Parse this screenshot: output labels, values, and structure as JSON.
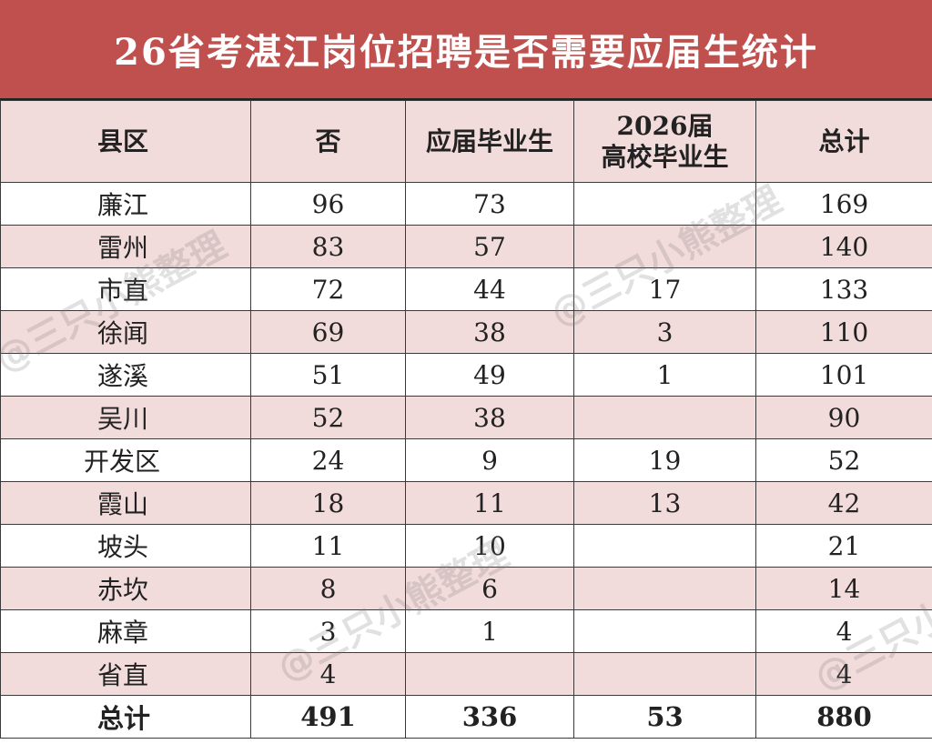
{
  "title": "26省考湛江岗位招聘是否需要应届生统计",
  "watermark": "@三只小熊整理",
  "header": {
    "county": "县区",
    "no": "否",
    "fresh_grad": "应届毕业生",
    "grad_2026_line1": "2026届",
    "grad_2026_line2": "高校毕业生",
    "total": "总计"
  },
  "rows": [
    {
      "county": "廉江",
      "no": "96",
      "fresh": "73",
      "grad2026": "",
      "total": "169"
    },
    {
      "county": "雷州",
      "no": "83",
      "fresh": "57",
      "grad2026": "",
      "total": "140"
    },
    {
      "county": "市直",
      "no": "72",
      "fresh": "44",
      "grad2026": "17",
      "total": "133"
    },
    {
      "county": "徐闻",
      "no": "69",
      "fresh": "38",
      "grad2026": "3",
      "total": "110"
    },
    {
      "county": "遂溪",
      "no": "51",
      "fresh": "49",
      "grad2026": "1",
      "total": "101"
    },
    {
      "county": "吴川",
      "no": "52",
      "fresh": "38",
      "grad2026": "",
      "total": "90"
    },
    {
      "county": "开发区",
      "no": "24",
      "fresh": "9",
      "grad2026": "19",
      "total": "52"
    },
    {
      "county": "霞山",
      "no": "18",
      "fresh": "11",
      "grad2026": "13",
      "total": "42"
    },
    {
      "county": "坡头",
      "no": "11",
      "fresh": "10",
      "grad2026": "",
      "total": "21"
    },
    {
      "county": "赤坎",
      "no": "8",
      "fresh": "6",
      "grad2026": "",
      "total": "14"
    },
    {
      "county": "麻章",
      "no": "3",
      "fresh": "1",
      "grad2026": "",
      "total": "4"
    },
    {
      "county": "省直",
      "no": "4",
      "fresh": "",
      "grad2026": "",
      "total": "4"
    }
  ],
  "totals": {
    "county": "总计",
    "no": "491",
    "fresh": "336",
    "grad2026": "53",
    "total": "880"
  },
  "colors": {
    "title_bg": "#c0504d",
    "band": "#f2dcdb"
  }
}
